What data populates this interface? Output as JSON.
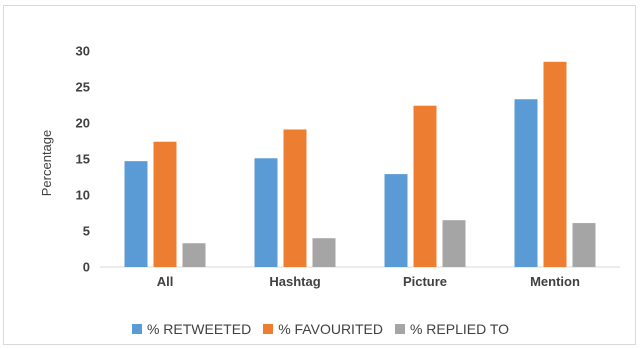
{
  "chart_data": {
    "type": "bar",
    "title": "",
    "xlabel": "",
    "ylabel": "Percentage",
    "ylim": [
      0,
      30
    ],
    "yticks": [
      0,
      5,
      10,
      15,
      20,
      25,
      30
    ],
    "grid": false,
    "legend_position": "bottom",
    "categories": [
      "All",
      "Hashtag",
      "Picture",
      "Mention"
    ],
    "series": [
      {
        "name": "% RETWEETED",
        "color": "#5b9bd5",
        "values": [
          14.7,
          15.1,
          12.9,
          23.3
        ]
      },
      {
        "name": "% FAVOURITED",
        "color": "#ed7d31",
        "values": [
          17.4,
          19.1,
          22.4,
          28.5
        ]
      },
      {
        "name": "% REPLIED TO",
        "color": "#a5a5a5",
        "values": [
          3.3,
          4.0,
          6.5,
          6.1
        ]
      }
    ]
  }
}
